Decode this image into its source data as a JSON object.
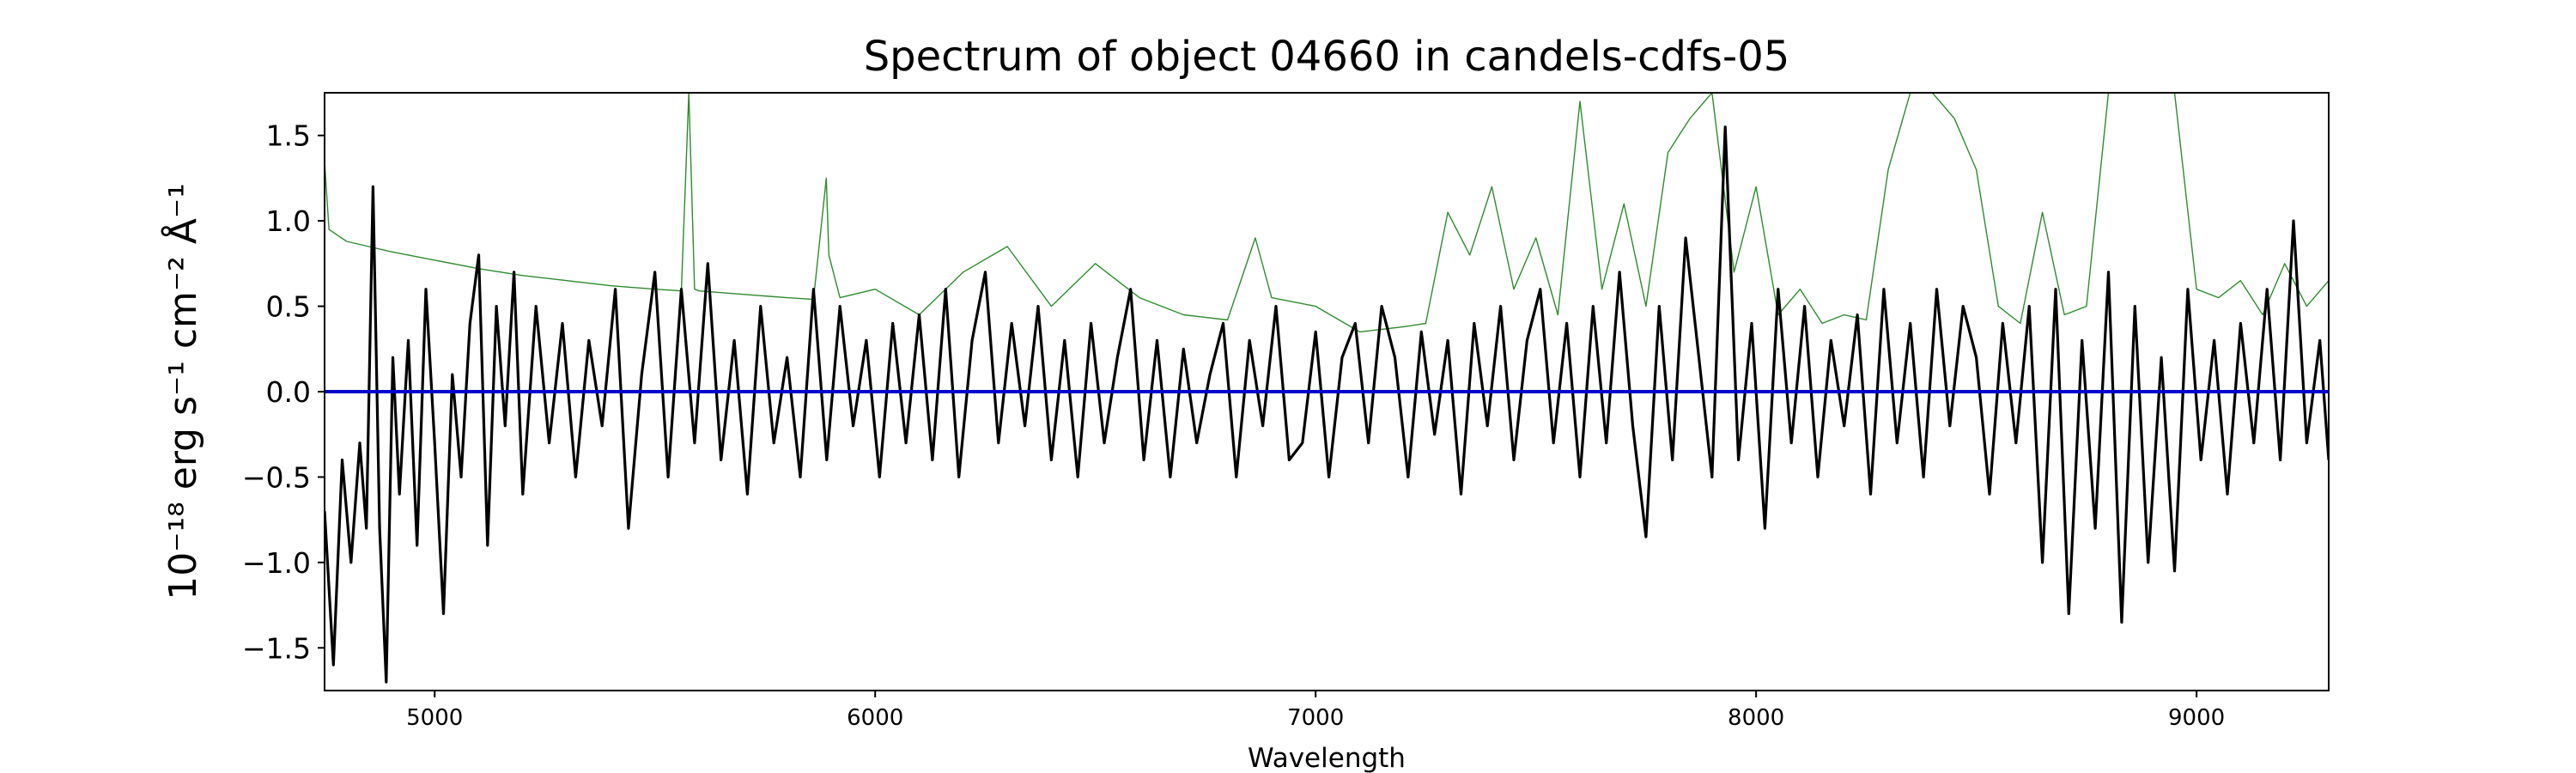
{
  "chart_data": {
    "type": "line",
    "title": "Spectrum of object 04660 in candels-cdfs-05",
    "xlabel": "Wavelength",
    "ylabel": "10⁻¹⁸ erg s⁻¹ cm⁻² Å⁻¹",
    "xlim": [
      4750,
      9300
    ],
    "ylim": [
      -1.75,
      1.75
    ],
    "xticks": [
      5000,
      6000,
      7000,
      8000,
      9000
    ],
    "xtick_labels": [
      "5000",
      "6000",
      "7000",
      "8000",
      "9000"
    ],
    "yticks": [
      -1.5,
      -1.0,
      -0.5,
      0.0,
      0.5,
      1.0,
      1.5
    ],
    "ytick_labels": [
      "−1.5",
      "−1.0",
      "−0.5",
      "0.0",
      "0.5",
      "1.0",
      "1.5"
    ],
    "grid": false,
    "series": [
      {
        "color": "#2e8b2e",
        "style": "thin",
        "x": [
          4750,
          4760,
          4800,
          4850,
          4900,
          5000,
          5100,
          5200,
          5300,
          5400,
          5500,
          5560,
          5577,
          5590,
          5600,
          5700,
          5800,
          5860,
          5889,
          5895,
          5920,
          6000,
          6100,
          6200,
          6300,
          6400,
          6500,
          6600,
          6700,
          6800,
          6863,
          6900,
          7000,
          7100,
          7200,
          7250,
          7300,
          7350,
          7400,
          7450,
          7500,
          7550,
          7600,
          7650,
          7700,
          7750,
          7800,
          7850,
          7900,
          7950,
          8000,
          8050,
          8100,
          8150,
          8200,
          8250,
          8300,
          8350,
          8400,
          8450,
          8500,
          8550,
          8600,
          8650,
          8700,
          8750,
          8800,
          8850,
          8900,
          8950,
          9000,
          9050,
          9100,
          9150,
          9200,
          9250,
          9300
        ],
        "y": [
          1.35,
          0.95,
          0.88,
          0.85,
          0.82,
          0.77,
          0.72,
          0.68,
          0.65,
          0.62,
          0.6,
          0.59,
          1.75,
          0.6,
          0.59,
          0.57,
          0.55,
          0.54,
          1.25,
          0.8,
          0.55,
          0.6,
          0.45,
          0.7,
          0.85,
          0.5,
          0.75,
          0.55,
          0.45,
          0.42,
          0.9,
          0.55,
          0.5,
          0.35,
          0.38,
          0.4,
          1.05,
          0.8,
          1.2,
          0.6,
          0.9,
          0.45,
          1.7,
          0.6,
          1.1,
          0.5,
          1.4,
          1.6,
          1.75,
          0.7,
          1.2,
          0.45,
          0.6,
          0.4,
          0.45,
          0.42,
          1.3,
          1.75,
          1.75,
          1.6,
          1.3,
          0.5,
          0.4,
          1.05,
          0.45,
          0.5,
          1.75,
          1.75,
          1.75,
          1.75,
          0.6,
          0.55,
          0.65,
          0.45,
          0.75,
          0.5,
          0.65
        ]
      },
      {
        "color": "#000000",
        "style": "thick",
        "x": [
          4750,
          4770,
          4790,
          4810,
          4830,
          4845,
          4860,
          4875,
          4890,
          4905,
          4920,
          4940,
          4960,
          4980,
          5000,
          5020,
          5040,
          5060,
          5080,
          5100,
          5120,
          5140,
          5160,
          5180,
          5200,
          5230,
          5260,
          5290,
          5320,
          5350,
          5380,
          5410,
          5440,
          5470,
          5500,
          5530,
          5560,
          5590,
          5620,
          5650,
          5680,
          5710,
          5740,
          5770,
          5800,
          5830,
          5860,
          5890,
          5920,
          5950,
          5980,
          6010,
          6040,
          6070,
          6100,
          6130,
          6160,
          6190,
          6220,
          6250,
          6280,
          6310,
          6340,
          6370,
          6400,
          6430,
          6460,
          6490,
          6520,
          6550,
          6580,
          6610,
          6640,
          6670,
          6700,
          6730,
          6760,
          6790,
          6820,
          6850,
          6880,
          6910,
          6940,
          6970,
          7000,
          7030,
          7060,
          7090,
          7120,
          7150,
          7180,
          7210,
          7240,
          7270,
          7300,
          7330,
          7360,
          7390,
          7420,
          7450,
          7480,
          7510,
          7540,
          7570,
          7600,
          7630,
          7660,
          7690,
          7720,
          7750,
          7780,
          7810,
          7840,
          7870,
          7900,
          7930,
          7960,
          7990,
          8020,
          8050,
          8080,
          8110,
          8140,
          8170,
          8200,
          8230,
          8260,
          8290,
          8320,
          8350,
          8380,
          8410,
          8440,
          8470,
          8500,
          8530,
          8560,
          8590,
          8620,
          8650,
          8680,
          8710,
          8740,
          8770,
          8800,
          8830,
          8860,
          8890,
          8920,
          8950,
          8980,
          9010,
          9040,
          9070,
          9100,
          9130,
          9160,
          9190,
          9220,
          9250,
          9280,
          9300
        ],
        "y": [
          -0.7,
          -1.6,
          -0.4,
          -1.0,
          -0.3,
          -0.8,
          1.2,
          -0.8,
          -1.7,
          0.2,
          -0.6,
          0.3,
          -0.9,
          0.6,
          -0.3,
          -1.3,
          0.1,
          -0.5,
          0.4,
          0.8,
          -0.9,
          0.5,
          -0.2,
          0.7,
          -0.6,
          0.5,
          -0.3,
          0.4,
          -0.5,
          0.3,
          -0.2,
          0.6,
          -0.8,
          0.1,
          0.7,
          -0.5,
          0.6,
          -0.3,
          0.75,
          -0.4,
          0.3,
          -0.6,
          0.5,
          -0.3,
          0.2,
          -0.5,
          0.6,
          -0.4,
          0.5,
          -0.2,
          0.3,
          -0.5,
          0.4,
          -0.3,
          0.45,
          -0.4,
          0.6,
          -0.5,
          0.3,
          0.7,
          -0.3,
          0.4,
          -0.2,
          0.5,
          -0.4,
          0.3,
          -0.5,
          0.4,
          -0.3,
          0.2,
          0.6,
          -0.4,
          0.3,
          -0.5,
          0.25,
          -0.3,
          0.1,
          0.4,
          -0.5,
          0.3,
          -0.2,
          0.5,
          -0.4,
          -0.3,
          0.35,
          -0.5,
          0.2,
          0.4,
          -0.3,
          0.5,
          0.2,
          -0.5,
          0.35,
          -0.25,
          0.3,
          -0.6,
          0.4,
          -0.2,
          0.5,
          -0.4,
          0.3,
          0.6,
          -0.3,
          0.4,
          -0.5,
          0.5,
          -0.3,
          0.7,
          -0.2,
          -0.85,
          0.5,
          -0.4,
          0.9,
          0.2,
          -0.5,
          1.55,
          -0.4,
          0.4,
          -0.8,
          0.6,
          -0.3,
          0.5,
          -0.5,
          0.3,
          -0.2,
          0.45,
          -0.6,
          0.6,
          -0.3,
          0.4,
          -0.5,
          0.6,
          -0.2,
          0.5,
          0.2,
          -0.6,
          0.4,
          -0.3,
          0.5,
          -1.0,
          0.6,
          -1.3,
          0.3,
          -0.8,
          0.7,
          -1.35,
          0.5,
          -1.0,
          0.2,
          -1.05,
          0.6,
          -0.4,
          0.3,
          -0.6,
          0.4,
          -0.3,
          0.6,
          -0.4,
          1.0,
          -0.3,
          0.3,
          -0.4
        ]
      },
      {
        "color": "#0000cc",
        "style": "medium",
        "x": [
          4750,
          9300
        ],
        "y": [
          0.0,
          0.0
        ]
      }
    ]
  }
}
